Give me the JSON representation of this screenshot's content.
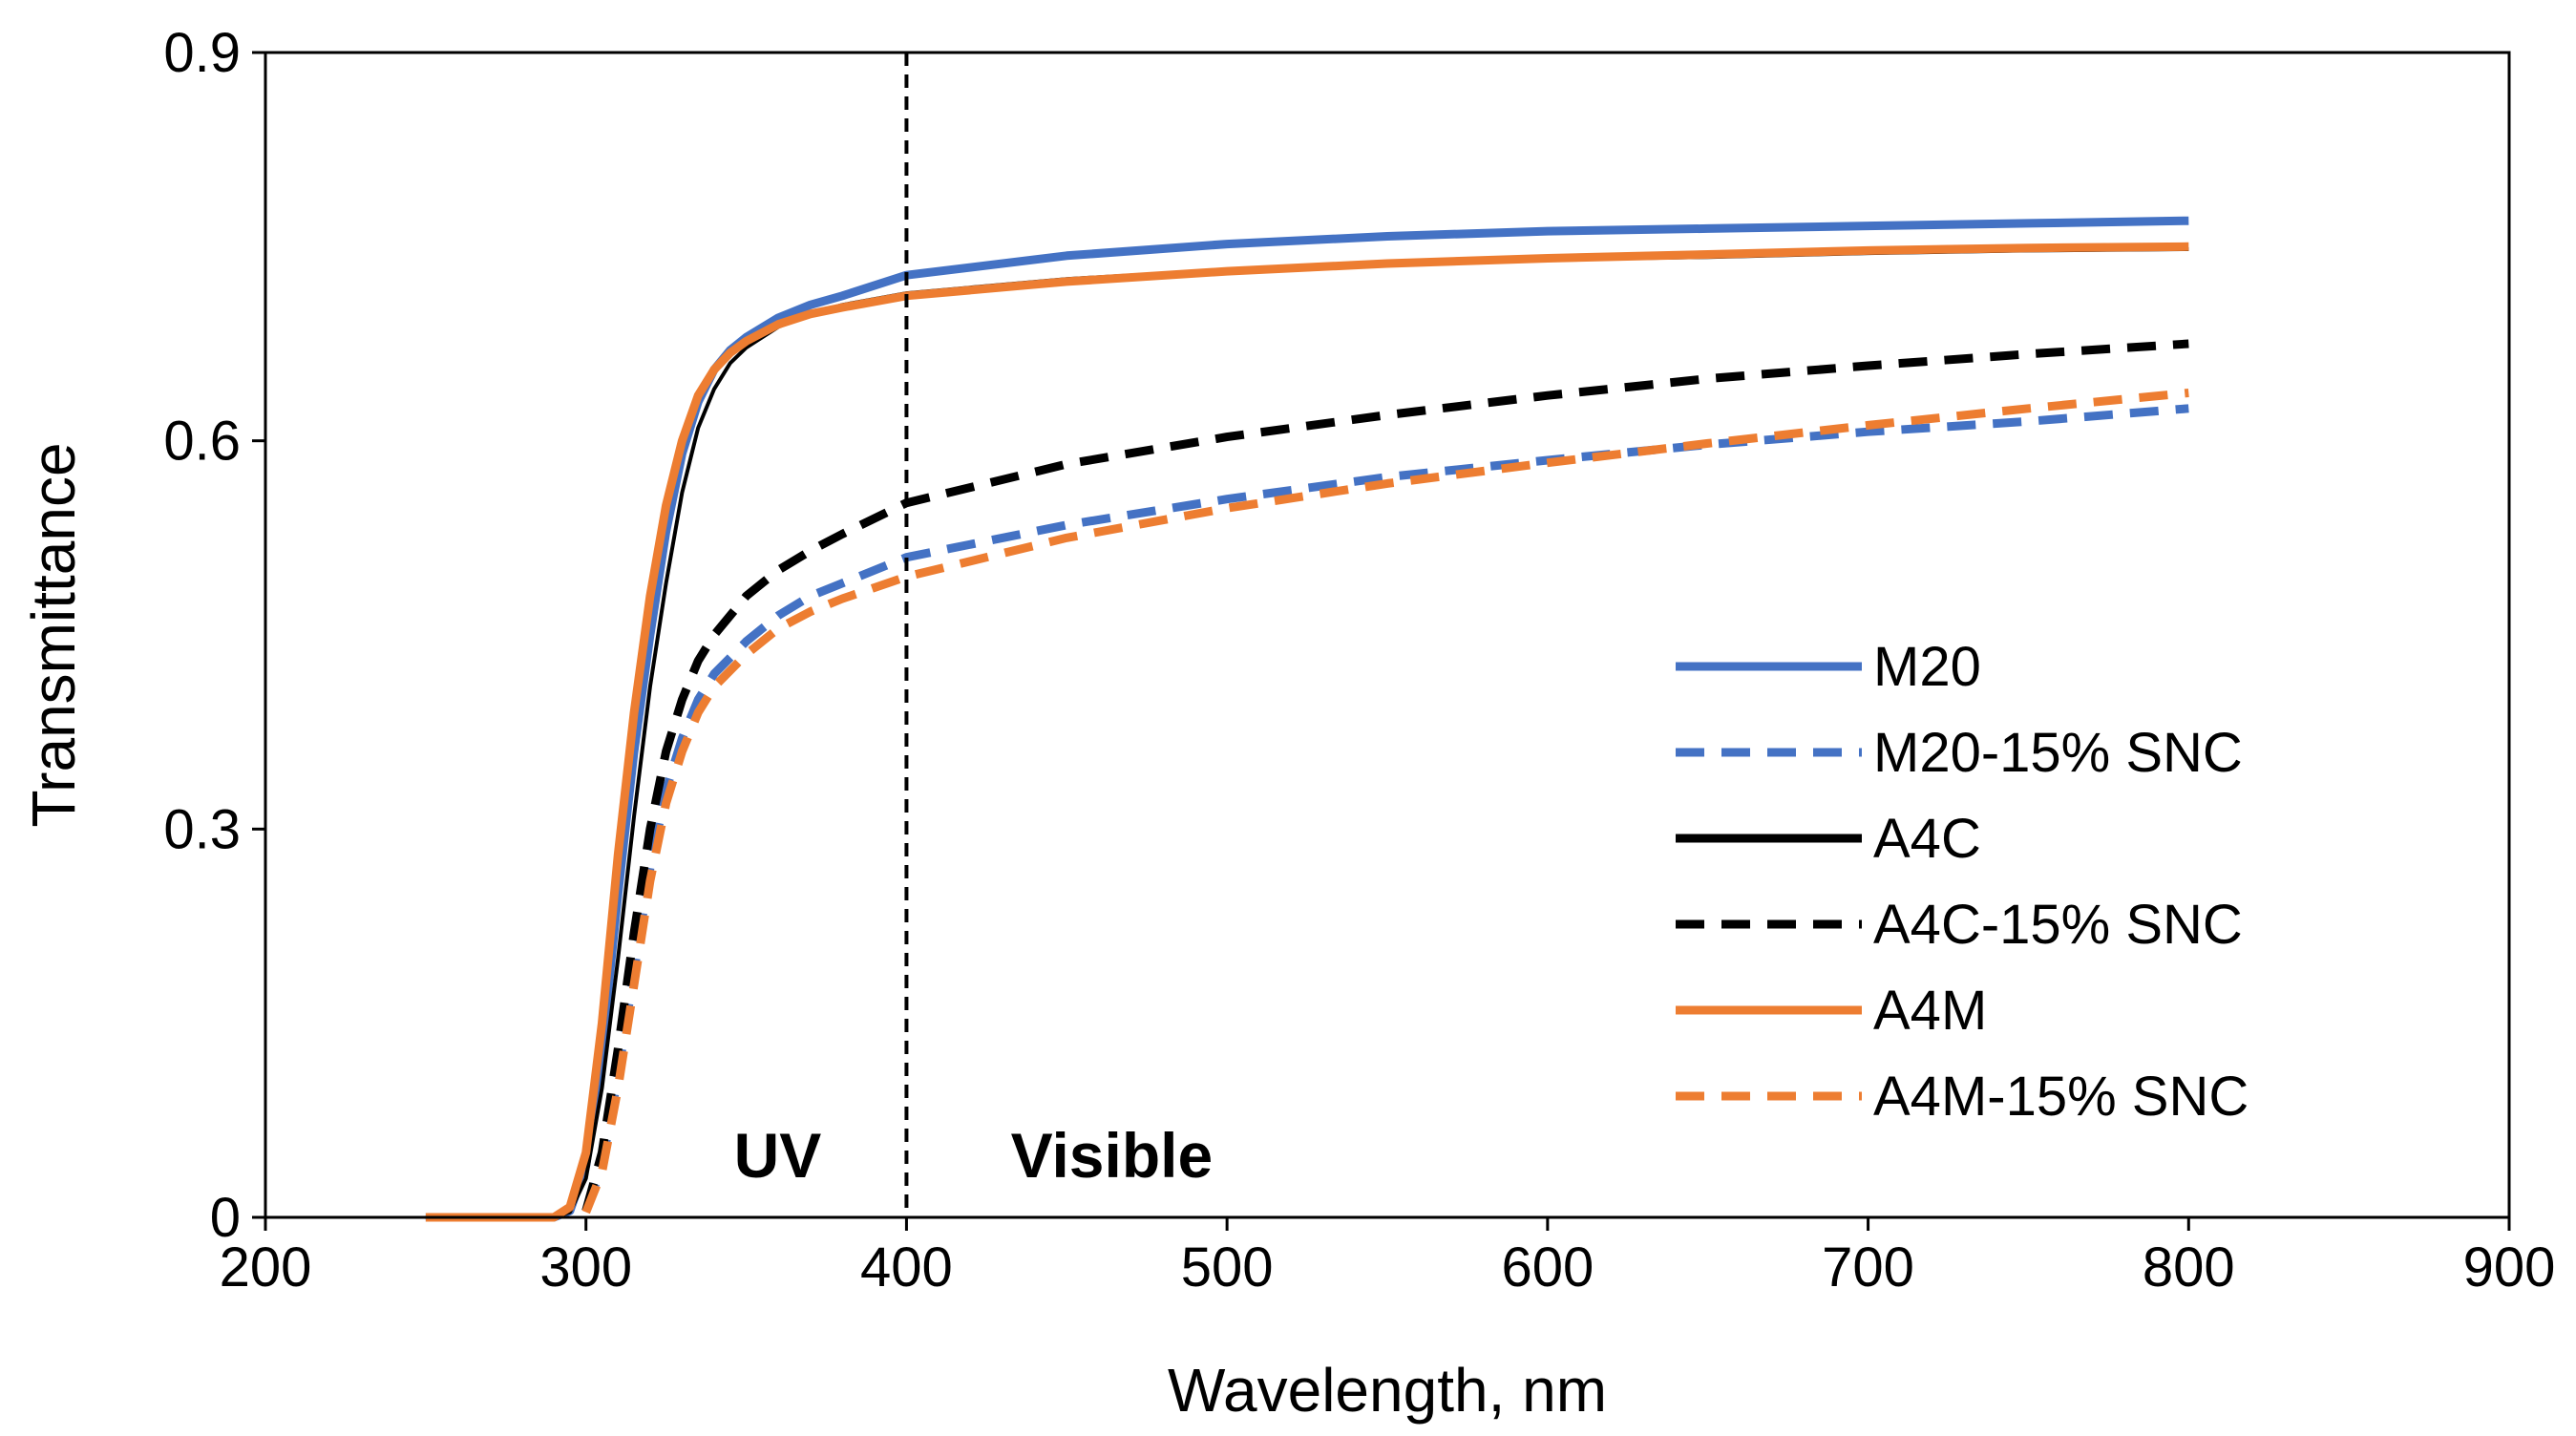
{
  "chart_data": {
    "type": "line",
    "title": "",
    "xlabel": "Wavelength, nm",
    "ylabel": "Transmittance",
    "xlim": [
      200,
      900
    ],
    "ylim": [
      0,
      0.9
    ],
    "xticks": [
      "200",
      "300",
      "400",
      "500",
      "600",
      "700",
      "800",
      "900"
    ],
    "yticks": [
      "0",
      "0.3",
      "0.6",
      "0.9"
    ],
    "grid": false,
    "legend_position": "right",
    "annotations": {
      "divider_x": 400,
      "uv_label": "UV",
      "visible_label": "Visible"
    },
    "colors": {
      "blue": "#4472C4",
      "black": "#000000",
      "orange": "#ED7D31"
    },
    "series": [
      {
        "name": "M20",
        "color": "#4472C4",
        "dash": "solid",
        "x": [
          250,
          280,
          290,
          295,
          300,
          305,
          310,
          315,
          320,
          325,
          330,
          335,
          340,
          345,
          350,
          360,
          370,
          380,
          400,
          450,
          500,
          550,
          600,
          650,
          700,
          750,
          800
        ],
        "y": [
          0,
          0,
          0,
          0.005,
          0.04,
          0.13,
          0.25,
          0.36,
          0.45,
          0.53,
          0.59,
          0.63,
          0.655,
          0.67,
          0.68,
          0.695,
          0.705,
          0.712,
          0.728,
          0.743,
          0.752,
          0.758,
          0.762,
          0.764,
          0.766,
          0.768,
          0.77
        ]
      },
      {
        "name": "M20-15% SNC",
        "color": "#4472C4",
        "dash": "dashed",
        "x": [
          300,
          305,
          310,
          315,
          320,
          325,
          330,
          335,
          340,
          350,
          360,
          370,
          380,
          400,
          450,
          500,
          550,
          600,
          650,
          700,
          750,
          800
        ],
        "y": [
          0.005,
          0.04,
          0.11,
          0.19,
          0.27,
          0.33,
          0.37,
          0.4,
          0.42,
          0.445,
          0.465,
          0.48,
          0.49,
          0.51,
          0.535,
          0.555,
          0.572,
          0.585,
          0.597,
          0.607,
          0.615,
          0.625
        ]
      },
      {
        "name": "A4C",
        "color": "#000000",
        "dash": "solid",
        "x": [
          250,
          280,
          290,
          295,
          300,
          305,
          310,
          315,
          320,
          325,
          330,
          335,
          340,
          345,
          350,
          360,
          370,
          380,
          400,
          450,
          500,
          550,
          600,
          650,
          700,
          750,
          800
        ],
        "y": [
          0,
          0,
          0,
          0.004,
          0.03,
          0.1,
          0.2,
          0.31,
          0.41,
          0.49,
          0.56,
          0.61,
          0.64,
          0.66,
          0.672,
          0.688,
          0.698,
          0.705,
          0.714,
          0.725,
          0.732,
          0.737,
          0.74,
          0.742,
          0.745,
          0.747,
          0.748
        ]
      },
      {
        "name": "A4C-15% SNC",
        "color": "#000000",
        "dash": "dashed",
        "x": [
          300,
          305,
          310,
          315,
          320,
          325,
          330,
          335,
          340,
          350,
          360,
          370,
          380,
          400,
          450,
          500,
          550,
          600,
          650,
          700,
          750,
          800
        ],
        "y": [
          0.005,
          0.05,
          0.13,
          0.22,
          0.3,
          0.36,
          0.4,
          0.43,
          0.45,
          0.48,
          0.5,
          0.515,
          0.528,
          0.552,
          0.582,
          0.603,
          0.62,
          0.635,
          0.648,
          0.658,
          0.667,
          0.675
        ]
      },
      {
        "name": "A4M",
        "color": "#ED7D31",
        "dash": "solid",
        "x": [
          250,
          280,
          290,
          295,
          300,
          305,
          310,
          315,
          320,
          325,
          330,
          335,
          340,
          345,
          350,
          360,
          370,
          380,
          400,
          450,
          500,
          550,
          600,
          650,
          700,
          750,
          800
        ],
        "y": [
          0,
          0,
          0,
          0.008,
          0.05,
          0.15,
          0.28,
          0.39,
          0.48,
          0.55,
          0.6,
          0.635,
          0.655,
          0.668,
          0.677,
          0.69,
          0.698,
          0.703,
          0.712,
          0.723,
          0.731,
          0.737,
          0.741,
          0.744,
          0.747,
          0.749,
          0.75
        ]
      },
      {
        "name": "A4M-15% SNC",
        "color": "#ED7D31",
        "dash": "dashed",
        "x": [
          300,
          305,
          310,
          315,
          320,
          325,
          330,
          335,
          340,
          350,
          360,
          370,
          380,
          400,
          450,
          500,
          550,
          600,
          650,
          700,
          750,
          800
        ],
        "y": [
          0.004,
          0.035,
          0.1,
          0.18,
          0.26,
          0.32,
          0.36,
          0.39,
          0.41,
          0.435,
          0.455,
          0.468,
          0.478,
          0.495,
          0.525,
          0.548,
          0.567,
          0.583,
          0.598,
          0.612,
          0.625,
          0.637
        ]
      }
    ]
  }
}
